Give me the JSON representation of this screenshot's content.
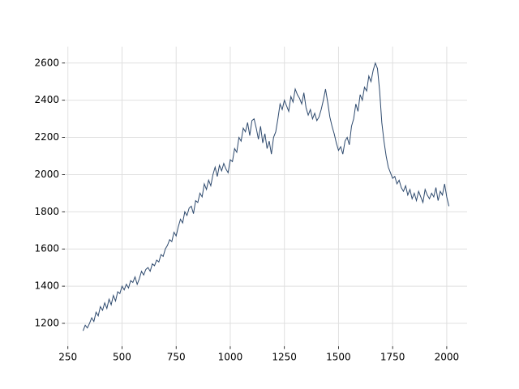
{
  "chart_data": {
    "type": "line",
    "x": [
      320,
      330,
      340,
      350,
      360,
      370,
      380,
      390,
      400,
      410,
      420,
      430,
      440,
      450,
      460,
      470,
      480,
      490,
      500,
      510,
      520,
      530,
      540,
      550,
      560,
      570,
      580,
      590,
      600,
      610,
      620,
      630,
      640,
      650,
      660,
      670,
      680,
      690,
      700,
      710,
      720,
      730,
      740,
      750,
      760,
      770,
      780,
      790,
      800,
      810,
      820,
      830,
      840,
      850,
      860,
      870,
      880,
      890,
      900,
      910,
      920,
      930,
      940,
      950,
      960,
      970,
      980,
      990,
      1000,
      1010,
      1020,
      1030,
      1040,
      1050,
      1060,
      1070,
      1080,
      1090,
      1100,
      1110,
      1120,
      1130,
      1140,
      1150,
      1160,
      1170,
      1180,
      1190,
      1200,
      1210,
      1220,
      1230,
      1240,
      1250,
      1260,
      1270,
      1280,
      1290,
      1300,
      1310,
      1320,
      1330,
      1340,
      1350,
      1360,
      1370,
      1380,
      1390,
      1400,
      1410,
      1420,
      1430,
      1440,
      1450,
      1460,
      1470,
      1480,
      1490,
      1500,
      1510,
      1520,
      1530,
      1540,
      1550,
      1560,
      1570,
      1580,
      1590,
      1600,
      1610,
      1620,
      1630,
      1640,
      1650,
      1660,
      1670,
      1680,
      1690,
      1700,
      1710,
      1720,
      1730,
      1740,
      1750,
      1760,
      1770,
      1780,
      1790,
      1800,
      1810,
      1820,
      1830,
      1840,
      1850,
      1860,
      1870,
      1880,
      1890,
      1900,
      1910,
      1920,
      1930,
      1940,
      1950,
      1960,
      1970,
      1980,
      1990,
      2000,
      2010
    ],
    "series": [
      {
        "color": "#2e4a6e",
        "values": [
          1160,
          1190,
          1175,
          1200,
          1230,
          1210,
          1260,
          1240,
          1290,
          1270,
          1310,
          1280,
          1330,
          1300,
          1350,
          1320,
          1370,
          1360,
          1400,
          1380,
          1410,
          1390,
          1430,
          1420,
          1450,
          1410,
          1440,
          1480,
          1460,
          1490,
          1500,
          1480,
          1520,
          1510,
          1540,
          1530,
          1570,
          1560,
          1600,
          1620,
          1650,
          1640,
          1690,
          1670,
          1720,
          1760,
          1740,
          1800,
          1780,
          1820,
          1830,
          1790,
          1860,
          1850,
          1900,
          1880,
          1950,
          1920,
          1970,
          1940,
          2000,
          2040,
          1990,
          2050,
          2020,
          2060,
          2030,
          2010,
          2080,
          2070,
          2140,
          2120,
          2200,
          2180,
          2250,
          2230,
          2280,
          2210,
          2290,
          2300,
          2250,
          2190,
          2260,
          2170,
          2220,
          2140,
          2180,
          2110,
          2200,
          2230,
          2300,
          2380,
          2350,
          2400,
          2370,
          2340,
          2420,
          2390,
          2460,
          2430,
          2410,
          2380,
          2440,
          2360,
          2320,
          2350,
          2300,
          2330,
          2290,
          2310,
          2350,
          2400,
          2460,
          2390,
          2310,
          2260,
          2220,
          2170,
          2130,
          2150,
          2110,
          2180,
          2200,
          2160,
          2260,
          2300,
          2380,
          2340,
          2430,
          2400,
          2470,
          2450,
          2530,
          2500,
          2560,
          2600,
          2570,
          2450,
          2280,
          2180,
          2100,
          2040,
          2010,
          1980,
          1990,
          1950,
          1970,
          1930,
          1910,
          1940,
          1890,
          1920,
          1870,
          1900,
          1860,
          1910,
          1880,
          1850,
          1920,
          1890,
          1870,
          1900,
          1880,
          1930,
          1860,
          1910,
          1890,
          1950,
          1880,
          1830
        ]
      }
    ],
    "xlim": [
      236,
      2094
    ],
    "ylim": [
      1077,
      2688
    ],
    "xticks": [
      250,
      500,
      750,
      1000,
      1250,
      1500,
      1750,
      2000
    ],
    "yticks": [
      1200,
      1400,
      1600,
      1800,
      2000,
      2200,
      2400,
      2600
    ],
    "grid": true
  }
}
